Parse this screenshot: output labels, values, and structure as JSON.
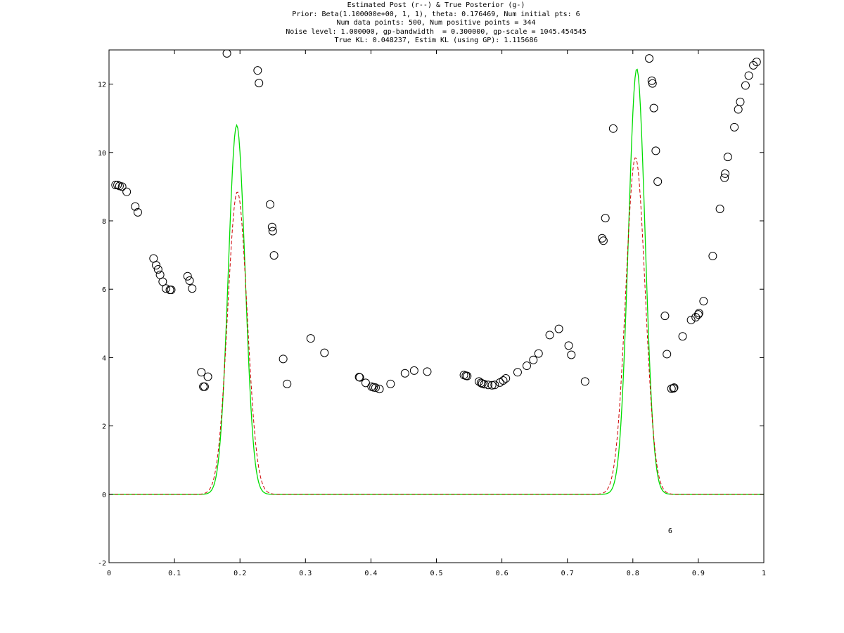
{
  "chart_data": {
    "type": "line",
    "title_lines": [
      "Estimated Post (r--) & True Posterior (g-)",
      "Prior: Beta(1.100000e+00, 1, 1), theta: 0.176469, Num initial pts: 6",
      "Num data points: 500, Num positive points = 344",
      "Noise level: 1.000000, gp-bandwidth  = 0.300000, gp-scale = 1045.454545",
      "True KL: 0.048237, Estim KL (using GP): 1.115686"
    ],
    "xlim": [
      0,
      1
    ],
    "ylim": [
      -2,
      13
    ],
    "x_ticks": [
      0,
      0.1,
      0.2,
      0.3,
      0.4,
      0.5,
      0.6,
      0.7,
      0.8,
      0.9,
      1
    ],
    "x_tick_labels": [
      "0",
      "0.1",
      "0.2",
      "0.3",
      "0.4",
      "0.5",
      "0.6",
      "0.7",
      "0.8",
      "0.9",
      "1"
    ],
    "y_ticks": [
      -2,
      0,
      2,
      4,
      6,
      8,
      10,
      12
    ],
    "y_tick_labels": [
      "-2",
      "0",
      "2",
      "4",
      "6",
      "8",
      "10",
      "12"
    ],
    "grid": false,
    "annotation": {
      "text": "6",
      "x": 0.857,
      "y": -1.05
    },
    "series": [
      {
        "style": "green solid",
        "color": "#00dd00",
        "peaks": [
          {
            "center": 0.195,
            "height": 10.8,
            "sigma": 0.0128
          },
          {
            "center": 0.806,
            "height": 12.45,
            "sigma": 0.0128
          }
        ]
      },
      {
        "style": "red dashed",
        "color": "#cc0000",
        "peaks": [
          {
            "center": 0.196,
            "height": 8.85,
            "sigma": 0.0148
          },
          {
            "center": 0.804,
            "height": 9.85,
            "sigma": 0.0148
          }
        ]
      },
      {
        "style": "black open circles",
        "color": "#000000",
        "points": [
          [
            0.01,
            9.05
          ],
          [
            0.013,
            9.05
          ],
          [
            0.016,
            9.02
          ],
          [
            0.02,
            9.0
          ],
          [
            0.027,
            8.85
          ],
          [
            0.04,
            8.42
          ],
          [
            0.044,
            8.25
          ],
          [
            0.068,
            6.9
          ],
          [
            0.072,
            6.7
          ],
          [
            0.075,
            6.58
          ],
          [
            0.078,
            6.42
          ],
          [
            0.082,
            6.22
          ],
          [
            0.087,
            6.02
          ],
          [
            0.093,
            5.98
          ],
          [
            0.095,
            5.98
          ],
          [
            0.12,
            6.38
          ],
          [
            0.123,
            6.25
          ],
          [
            0.127,
            6.02
          ],
          [
            0.141,
            3.57
          ],
          [
            0.144,
            3.15
          ],
          [
            0.146,
            3.15
          ],
          [
            0.151,
            3.44
          ],
          [
            0.18,
            12.9
          ],
          [
            0.227,
            12.4
          ],
          [
            0.229,
            12.03
          ],
          [
            0.246,
            8.48
          ],
          [
            0.249,
            7.82
          ],
          [
            0.25,
            7.7
          ],
          [
            0.252,
            6.99
          ],
          [
            0.266,
            3.96
          ],
          [
            0.272,
            3.23
          ],
          [
            0.308,
            4.56
          ],
          [
            0.329,
            4.14
          ],
          [
            0.382,
            3.43
          ],
          [
            0.383,
            3.42
          ],
          [
            0.392,
            3.26
          ],
          [
            0.401,
            3.15
          ],
          [
            0.404,
            3.13
          ],
          [
            0.407,
            3.12
          ],
          [
            0.413,
            3.08
          ],
          [
            0.43,
            3.23
          ],
          [
            0.452,
            3.54
          ],
          [
            0.466,
            3.62
          ],
          [
            0.486,
            3.59
          ],
          [
            0.542,
            3.49
          ],
          [
            0.545,
            3.47
          ],
          [
            0.547,
            3.46
          ],
          [
            0.565,
            3.3
          ],
          [
            0.568,
            3.26
          ],
          [
            0.57,
            3.24
          ],
          [
            0.573,
            3.22
          ],
          [
            0.579,
            3.2
          ],
          [
            0.585,
            3.19
          ],
          [
            0.589,
            3.2
          ],
          [
            0.597,
            3.27
          ],
          [
            0.602,
            3.33
          ],
          [
            0.606,
            3.39
          ],
          [
            0.624,
            3.57
          ],
          [
            0.638,
            3.76
          ],
          [
            0.648,
            3.93
          ],
          [
            0.656,
            4.12
          ],
          [
            0.673,
            4.66
          ],
          [
            0.687,
            4.84
          ],
          [
            0.702,
            4.35
          ],
          [
            0.706,
            4.08
          ],
          [
            0.727,
            3.3
          ],
          [
            0.753,
            7.49
          ],
          [
            0.755,
            7.42
          ],
          [
            0.758,
            8.08
          ],
          [
            0.77,
            10.7
          ],
          [
            0.825,
            12.75
          ],
          [
            0.829,
            12.1
          ],
          [
            0.83,
            12.02
          ],
          [
            0.832,
            11.3
          ],
          [
            0.835,
            10.05
          ],
          [
            0.838,
            9.15
          ],
          [
            0.849,
            5.22
          ],
          [
            0.852,
            4.1
          ],
          [
            0.859,
            3.09
          ],
          [
            0.862,
            3.1
          ],
          [
            0.863,
            3.12
          ],
          [
            0.876,
            4.62
          ],
          [
            0.889,
            5.1
          ],
          [
            0.896,
            5.18
          ],
          [
            0.9,
            5.26
          ],
          [
            0.901,
            5.3
          ],
          [
            0.908,
            5.65
          ],
          [
            0.922,
            6.97
          ],
          [
            0.933,
            8.35
          ],
          [
            0.94,
            9.26
          ],
          [
            0.941,
            9.38
          ],
          [
            0.945,
            9.87
          ],
          [
            0.955,
            10.74
          ],
          [
            0.961,
            11.26
          ],
          [
            0.964,
            11.48
          ],
          [
            0.972,
            11.96
          ],
          [
            0.977,
            12.25
          ],
          [
            0.984,
            12.55
          ],
          [
            0.989,
            12.65
          ]
        ]
      }
    ]
  }
}
